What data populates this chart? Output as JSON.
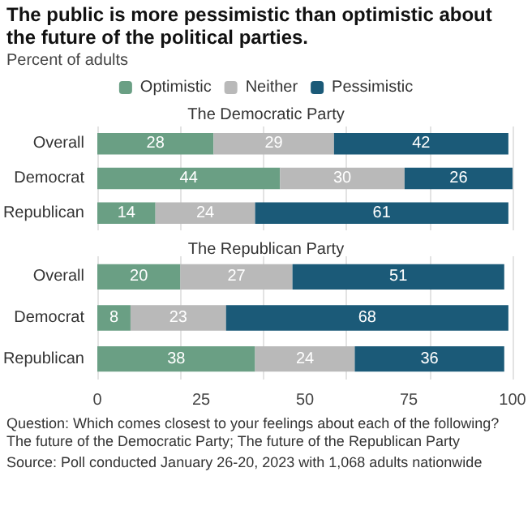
{
  "chart_data": [
    {
      "type": "bar",
      "orientation": "horizontal",
      "stacked": true,
      "title": "The Democratic Party",
      "annotations": [
        "The public is more pessimistic than optimistic about the future of the political parties.",
        "Percent of adults"
      ],
      "categories": [
        "Overall",
        "Democrat",
        "Republican"
      ],
      "series": [
        {
          "name": "Optimistic",
          "color": "#6a9f84",
          "values": [
            28,
            44,
            14
          ]
        },
        {
          "name": "Neither",
          "color": "#b9b9b9",
          "values": [
            29,
            30,
            24
          ]
        },
        {
          "name": "Pessimistic",
          "color": "#1b5a78",
          "values": [
            42,
            26,
            61
          ]
        }
      ],
      "xlim": [
        0,
        100
      ],
      "xticks": [
        0,
        25,
        50,
        75,
        100
      ],
      "grid": "x",
      "legend": "top",
      "data_labels": true,
      "tick_labels": "y"
    },
    {
      "type": "bar",
      "orientation": "horizontal",
      "stacked": true,
      "title": "The Republican Party",
      "annotations": [
        "Question: Which comes closest to your feelings about each of the following? The future of the Democratic Party; The future of the Republican Party",
        "Source: Poll conducted January 26-20, 2023 with 1,068 adults nationwide"
      ],
      "categories": [
        "Overall",
        "Democrat",
        "Republican"
      ],
      "series": [
        {
          "color": "#6a9f84",
          "values": [
            20,
            8,
            38
          ]
        },
        {
          "color": "#b9b9b9",
          "values": [
            27,
            23,
            24
          ]
        },
        {
          "color": "#1b5a78",
          "values": [
            51,
            68,
            36
          ]
        }
      ],
      "xlim": [
        0,
        100
      ],
      "xticks": [
        0,
        25,
        50,
        75,
        100
      ],
      "grid": "x",
      "data_labels": true
    }
  ]
}
